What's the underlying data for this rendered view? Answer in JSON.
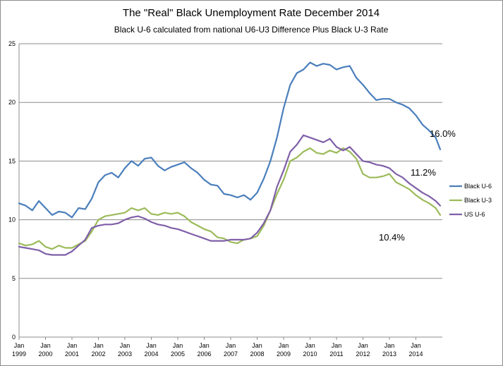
{
  "chart_data": {
    "type": "line",
    "title": "The \"Real\" Black Unemployment Rate December 2014",
    "subtitle": "Black U-6  calculated from national U6-U3 Difference Plus Black U-3 Rate",
    "xlabel": "",
    "ylabel": "",
    "ylim": [
      0,
      25
    ],
    "yticks": [
      "0",
      "5",
      "10",
      "15",
      "20",
      "25"
    ],
    "xlim": [
      1999.0,
      2015.0
    ],
    "xticks": [
      {
        "line1": "Jan",
        "line2": "1999"
      },
      {
        "line1": "Jan",
        "line2": "2000"
      },
      {
        "line1": "Jan",
        "line2": "2001"
      },
      {
        "line1": "Jan",
        "line2": "2002"
      },
      {
        "line1": "Jan",
        "line2": "2003"
      },
      {
        "line1": "Jan",
        "line2": "2004"
      },
      {
        "line1": "Jan",
        "line2": "2005"
      },
      {
        "line1": "Jan",
        "line2": "2006"
      },
      {
        "line1": "Jan",
        "line2": "2007"
      },
      {
        "line1": "Jan",
        "line2": "2008"
      },
      {
        "line1": "Jan",
        "line2": "2009"
      },
      {
        "line1": "Jan",
        "line2": "2010"
      },
      {
        "line1": "Jan",
        "line2": "2011"
      },
      {
        "line1": "Jan",
        "line2": "2012"
      },
      {
        "line1": "Jan",
        "line2": "2013"
      },
      {
        "line1": "Jan",
        "line2": "2014"
      }
    ],
    "grid": true,
    "legend_position": "right",
    "series": [
      {
        "name": "Black U-6",
        "color": "#4a7ebb",
        "x": [
          1999.0,
          1999.25,
          1999.5,
          1999.75,
          2000.0,
          2000.25,
          2000.5,
          2000.75,
          2001.0,
          2001.25,
          2001.5,
          2001.75,
          2002.0,
          2002.25,
          2002.5,
          2002.75,
          2003.0,
          2003.25,
          2003.5,
          2003.75,
          2004.0,
          2004.25,
          2004.5,
          2004.75,
          2005.0,
          2005.25,
          2005.5,
          2005.75,
          2006.0,
          2006.25,
          2006.5,
          2006.75,
          2007.0,
          2007.25,
          2007.5,
          2007.75,
          2008.0,
          2008.25,
          2008.5,
          2008.75,
          2009.0,
          2009.25,
          2009.5,
          2009.75,
          2010.0,
          2010.25,
          2010.5,
          2010.75,
          2011.0,
          2011.25,
          2011.5,
          2011.75,
          2012.0,
          2012.25,
          2012.5,
          2012.75,
          2013.0,
          2013.25,
          2013.5,
          2013.75,
          2014.0,
          2014.25,
          2014.5,
          2014.75,
          2014.92
        ],
        "y": [
          11.4,
          11.2,
          10.8,
          11.6,
          11.0,
          10.4,
          10.7,
          10.6,
          10.2,
          11.0,
          10.9,
          11.8,
          13.2,
          13.8,
          14.0,
          13.6,
          14.4,
          15.0,
          14.6,
          15.2,
          15.3,
          14.6,
          14.2,
          14.5,
          14.7,
          14.9,
          14.4,
          14.0,
          13.4,
          13.0,
          12.9,
          12.2,
          12.1,
          11.9,
          12.1,
          11.7,
          12.3,
          13.5,
          15.0,
          17.0,
          19.5,
          21.5,
          22.5,
          22.8,
          23.4,
          23.1,
          23.3,
          23.2,
          22.8,
          23.0,
          23.1,
          22.1,
          21.5,
          20.8,
          20.2,
          20.3,
          20.3,
          20.0,
          19.8,
          19.5,
          18.9,
          18.1,
          17.6,
          17.0,
          16.0
        ]
      },
      {
        "name": "Black U-3",
        "color": "#9bbb59",
        "x": [
          1999.0,
          1999.25,
          1999.5,
          1999.75,
          2000.0,
          2000.25,
          2000.5,
          2000.75,
          2001.0,
          2001.25,
          2001.5,
          2001.75,
          2002.0,
          2002.25,
          2002.5,
          2002.75,
          2003.0,
          2003.25,
          2003.5,
          2003.75,
          2004.0,
          2004.25,
          2004.5,
          2004.75,
          2005.0,
          2005.25,
          2005.5,
          2005.75,
          2006.0,
          2006.25,
          2006.5,
          2006.75,
          2007.0,
          2007.25,
          2007.5,
          2007.75,
          2008.0,
          2008.25,
          2008.5,
          2008.75,
          2009.0,
          2009.25,
          2009.5,
          2009.75,
          2010.0,
          2010.25,
          2010.5,
          2010.75,
          2011.0,
          2011.25,
          2011.5,
          2011.75,
          2012.0,
          2012.25,
          2012.5,
          2012.75,
          2013.0,
          2013.25,
          2013.5,
          2013.75,
          2014.0,
          2014.25,
          2014.5,
          2014.75,
          2014.92
        ],
        "y": [
          8.0,
          7.8,
          7.9,
          8.2,
          7.7,
          7.5,
          7.8,
          7.6,
          7.6,
          7.9,
          8.2,
          9.0,
          10.0,
          10.3,
          10.4,
          10.5,
          10.6,
          11.0,
          10.8,
          11.0,
          10.5,
          10.4,
          10.6,
          10.5,
          10.6,
          10.3,
          9.8,
          9.5,
          9.2,
          9.0,
          8.5,
          8.4,
          8.1,
          8.0,
          8.3,
          8.4,
          8.6,
          9.5,
          10.8,
          12.2,
          13.4,
          15.0,
          15.3,
          15.8,
          16.1,
          15.7,
          15.6,
          15.9,
          15.7,
          16.1,
          15.8,
          15.2,
          13.9,
          13.6,
          13.6,
          13.7,
          13.9,
          13.2,
          12.9,
          12.6,
          12.1,
          11.7,
          11.4,
          11.0,
          10.4
        ]
      },
      {
        "name": "US U-6",
        "color": "#7f5fa8",
        "x": [
          1999.0,
          1999.25,
          1999.5,
          1999.75,
          2000.0,
          2000.25,
          2000.5,
          2000.75,
          2001.0,
          2001.25,
          2001.5,
          2001.75,
          2002.0,
          2002.25,
          2002.5,
          2002.75,
          2003.0,
          2003.25,
          2003.5,
          2003.75,
          2004.0,
          2004.25,
          2004.5,
          2004.75,
          2005.0,
          2005.25,
          2005.5,
          2005.75,
          2006.0,
          2006.25,
          2006.5,
          2006.75,
          2007.0,
          2007.25,
          2007.5,
          2007.75,
          2008.0,
          2008.25,
          2008.5,
          2008.75,
          2009.0,
          2009.25,
          2009.5,
          2009.75,
          2010.0,
          2010.25,
          2010.5,
          2010.75,
          2011.0,
          2011.25,
          2011.5,
          2011.75,
          2012.0,
          2012.25,
          2012.5,
          2012.75,
          2013.0,
          2013.25,
          2013.5,
          2013.75,
          2014.0,
          2014.25,
          2014.5,
          2014.75,
          2014.92
        ],
        "y": [
          7.7,
          7.6,
          7.5,
          7.4,
          7.1,
          7.0,
          7.0,
          7.0,
          7.3,
          7.8,
          8.3,
          9.3,
          9.5,
          9.6,
          9.6,
          9.7,
          10.0,
          10.2,
          10.3,
          10.1,
          9.8,
          9.6,
          9.5,
          9.3,
          9.2,
          9.0,
          8.8,
          8.6,
          8.4,
          8.2,
          8.2,
          8.2,
          8.3,
          8.3,
          8.3,
          8.4,
          8.9,
          9.7,
          10.8,
          12.8,
          14.2,
          15.8,
          16.4,
          17.2,
          17.0,
          16.8,
          16.6,
          16.9,
          16.2,
          15.9,
          16.2,
          15.6,
          15.0,
          14.9,
          14.7,
          14.6,
          14.4,
          13.9,
          13.6,
          13.1,
          12.7,
          12.3,
          12.0,
          11.6,
          11.2
        ]
      }
    ],
    "annotations": [
      {
        "text": "16.0%",
        "series": "Black U-6"
      },
      {
        "text": "11.2%",
        "series": "US U-6"
      },
      {
        "text": "10.4%",
        "series": "Black U-3"
      }
    ]
  }
}
